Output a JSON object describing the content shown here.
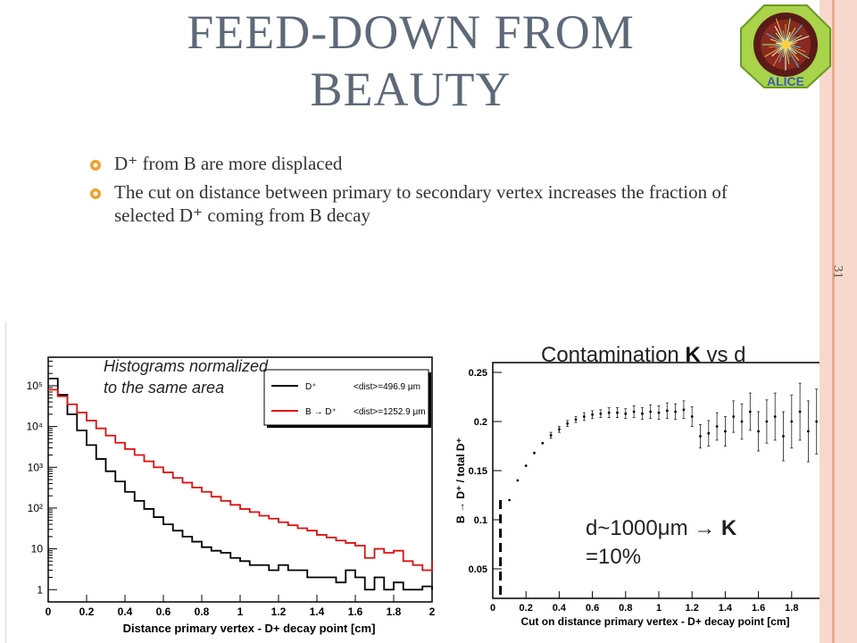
{
  "slide": {
    "title": "FEED-DOWN FROM BEAUTY",
    "number": "31",
    "logo_text": "ALICE",
    "bullets": [
      "D⁺ from B are more displaced",
      "The cut on distance between primary to secondary vertex increases the fraction of selected D⁺ coming from B decay"
    ]
  },
  "annotations": {
    "hist_note": "Histograms normalized to the same area",
    "contam_prefix": "Contamination ",
    "contam_k": "K",
    "contam_suffix": " vs d",
    "dval_line1_prefix": "d~1000μm → ",
    "dval_k": "K",
    "dval_line2": "=10%"
  },
  "colors": {
    "title": "#5d6979",
    "accent_band": "#f6d9cc",
    "bullet": "#f0a030",
    "series_black": "#000000",
    "series_red": "#e01010"
  },
  "chart_data": [
    {
      "type": "line",
      "xlabel": "Distance primary vertex - D+ decay point  [cm]",
      "ylabel": "",
      "xlim": [
        0,
        2
      ],
      "ylim": [
        0.5,
        500000
      ],
      "yscale": "log",
      "xticks": [
        "0",
        "0.2",
        "0.4",
        "0.6",
        "0.8",
        "1",
        "1.2",
        "1.4",
        "1.6",
        "1.8",
        "2"
      ],
      "yticks": [
        "1",
        "10",
        "10²",
        "10³",
        "10⁴",
        "10⁵"
      ],
      "yticks_val": [
        1,
        10,
        100,
        1000,
        10000,
        100000
      ],
      "legend": {
        "position": "top-right",
        "entries": [
          {
            "label": "D⁺",
            "stat": "<dist>=496.9 μm",
            "color": "#000000"
          },
          {
            "label": "B → D⁺",
            "stat": "<dist>=1252.9 μm",
            "color": "#e01010"
          }
        ]
      },
      "series": [
        {
          "name": "D⁺",
          "x": [
            0,
            0.05,
            0.1,
            0.15,
            0.2,
            0.25,
            0.3,
            0.35,
            0.4,
            0.45,
            0.5,
            0.55,
            0.6,
            0.65,
            0.7,
            0.75,
            0.8,
            0.85,
            0.9,
            0.95,
            1.0,
            1.05,
            1.1,
            1.15,
            1.2,
            1.25,
            1.3,
            1.35,
            1.4,
            1.45,
            1.5,
            1.55,
            1.6,
            1.65,
            1.7,
            1.75,
            1.8,
            1.85,
            1.9,
            1.95,
            2.0
          ],
          "values": [
            150000,
            60000,
            20000,
            8000,
            3500,
            1600,
            800,
            450,
            250,
            150,
            95,
            60,
            40,
            28,
            20,
            15,
            11,
            9,
            8,
            6,
            5,
            4,
            4,
            3,
            4,
            3,
            3,
            2,
            2,
            2,
            1.5,
            3,
            2,
            1,
            2,
            1,
            1.5,
            1,
            1,
            1.2,
            1
          ]
        },
        {
          "name": "B → D⁺",
          "x": [
            0,
            0.05,
            0.1,
            0.15,
            0.2,
            0.25,
            0.3,
            0.35,
            0.4,
            0.45,
            0.5,
            0.55,
            0.6,
            0.65,
            0.7,
            0.75,
            0.8,
            0.85,
            0.9,
            0.95,
            1.0,
            1.05,
            1.1,
            1.15,
            1.2,
            1.25,
            1.3,
            1.35,
            1.4,
            1.45,
            1.5,
            1.55,
            1.6,
            1.65,
            1.7,
            1.75,
            1.8,
            1.85,
            1.9,
            1.95,
            2.0
          ],
          "values": [
            80000,
            55000,
            35000,
            22000,
            14000,
            9000,
            6000,
            4000,
            2800,
            2000,
            1400,
            1000,
            750,
            550,
            420,
            320,
            250,
            190,
            150,
            120,
            95,
            80,
            65,
            55,
            45,
            38,
            32,
            28,
            22,
            19,
            16,
            14,
            12,
            6,
            10,
            8,
            9,
            5,
            4,
            3,
            5
          ]
        }
      ]
    },
    {
      "type": "scatter",
      "xlabel": "Cut on distance primary vertex - D+ decay point  [cm]",
      "ylabel": "B → D⁺ / total D⁺",
      "xlim": [
        0,
        2
      ],
      "ylim": [
        0.02,
        0.26
      ],
      "xticks": [
        "0",
        "0.2",
        "0.4",
        "0.6",
        "0.8",
        "1",
        "1.2",
        "1.4",
        "1.6",
        "1.8",
        "2"
      ],
      "yticks": [
        "0.05",
        "0.1",
        "0.15",
        "0.2",
        "0.25"
      ],
      "yticks_val": [
        0.05,
        0.1,
        0.15,
        0.2,
        0.25
      ],
      "cut_marker_x": 0.1,
      "series": [
        {
          "name": "",
          "x": [
            0.1,
            0.15,
            0.2,
            0.25,
            0.3,
            0.35,
            0.4,
            0.45,
            0.5,
            0.55,
            0.6,
            0.65,
            0.7,
            0.75,
            0.8,
            0.85,
            0.9,
            0.95,
            1.0,
            1.05,
            1.1,
            1.15,
            1.2,
            1.25,
            1.3,
            1.35,
            1.4,
            1.45,
            1.5,
            1.55,
            1.6,
            1.65,
            1.7,
            1.75,
            1.8,
            1.85,
            1.9,
            1.95,
            2.0
          ],
          "values": [
            0.12,
            0.14,
            0.155,
            0.168,
            0.178,
            0.186,
            0.192,
            0.198,
            0.202,
            0.205,
            0.207,
            0.208,
            0.209,
            0.209,
            0.208,
            0.21,
            0.208,
            0.21,
            0.209,
            0.211,
            0.21,
            0.212,
            0.205,
            0.185,
            0.188,
            0.195,
            0.19,
            0.205,
            0.2,
            0.21,
            0.19,
            0.2,
            0.205,
            0.185,
            0.2,
            0.21,
            0.19,
            0.2,
            0.205
          ],
          "errors": [
            0.002,
            0.002,
            0.002,
            0.002,
            0.002,
            0.003,
            0.003,
            0.003,
            0.003,
            0.004,
            0.004,
            0.004,
            0.005,
            0.005,
            0.005,
            0.006,
            0.006,
            0.007,
            0.007,
            0.008,
            0.008,
            0.009,
            0.01,
            0.012,
            0.013,
            0.014,
            0.015,
            0.016,
            0.018,
            0.019,
            0.02,
            0.022,
            0.024,
            0.025,
            0.027,
            0.029,
            0.031,
            0.033,
            0.035
          ]
        }
      ]
    }
  ]
}
